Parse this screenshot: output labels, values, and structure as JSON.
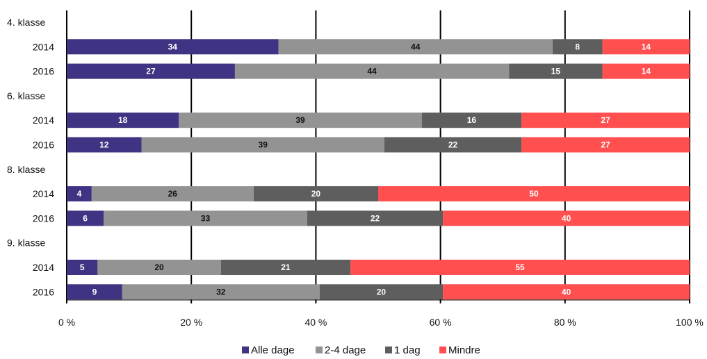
{
  "chart_data": {
    "type": "bar",
    "orientation": "horizontal",
    "stacked": "percent",
    "rows": [
      {
        "label": "4. klasse",
        "group_header": true
      },
      {
        "label": "2014",
        "values": [
          34,
          44,
          8,
          14
        ]
      },
      {
        "label": "2016",
        "values": [
          27,
          44,
          15,
          14
        ]
      },
      {
        "label": "6. klasse",
        "group_header": true
      },
      {
        "label": "2014",
        "values": [
          18,
          39,
          16,
          27
        ]
      },
      {
        "label": "2016",
        "values": [
          12,
          39,
          22,
          27
        ]
      },
      {
        "label": "8. klasse",
        "group_header": true
      },
      {
        "label": "2014",
        "values": [
          4,
          26,
          20,
          50
        ]
      },
      {
        "label": "2016",
        "values": [
          6,
          33,
          22,
          40
        ]
      },
      {
        "label": "9. klasse",
        "group_header": true
      },
      {
        "label": "2014",
        "values": [
          5,
          20,
          21,
          55
        ]
      },
      {
        "label": "2016",
        "values": [
          9,
          32,
          20,
          40
        ]
      }
    ],
    "series": [
      {
        "name": "Alle dage",
        "color": "#3f3383",
        "label_color": "#ffffff"
      },
      {
        "name": "2-4 dage",
        "color": "#939393",
        "label_color": "#111111"
      },
      {
        "name": "1 dag",
        "color": "#5e5e5e",
        "label_color": "#ffffff"
      },
      {
        "name": "Mindre",
        "color": "#ff4f4f",
        "label_color": "#ffffff"
      }
    ],
    "x_ticks": [
      "0 %",
      "20 %",
      "40 %",
      "60 %",
      "80 %",
      "100 %"
    ],
    "xlim": [
      0,
      100
    ],
    "grid": true,
    "legend_position": "bottom"
  }
}
